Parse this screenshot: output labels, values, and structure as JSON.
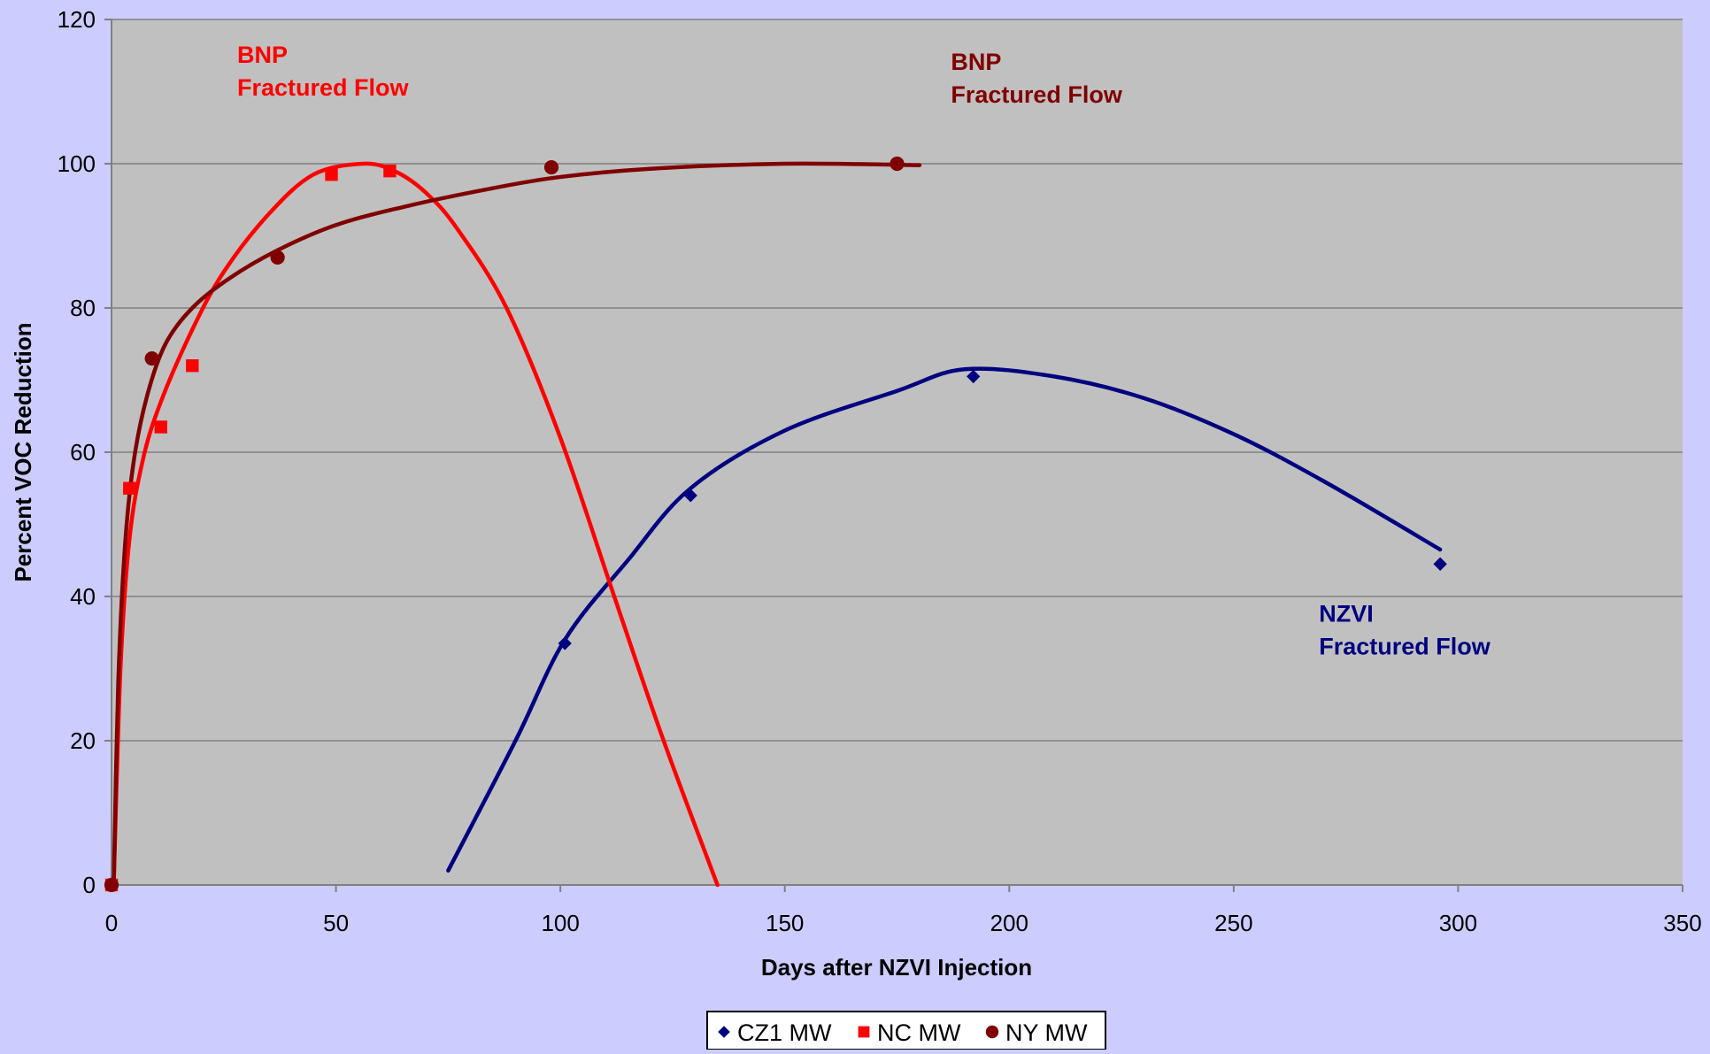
{
  "chart_data": {
    "type": "scatter",
    "title": "",
    "xlabel": "Days after NZVI Injection",
    "ylabel": "Percent VOC Reduction",
    "xlim": [
      0,
      350
    ],
    "ylim": [
      0,
      120
    ],
    "x_ticks": [
      0,
      50,
      100,
      150,
      200,
      250,
      300,
      350
    ],
    "y_ticks": [
      0,
      20,
      40,
      60,
      80,
      100,
      120
    ],
    "grid": "horizontal",
    "legend_position": "bottom",
    "colors": {
      "background": "#ccccff",
      "plot_area": "#c0c0c0",
      "gridline": "#808080",
      "text": "#000000"
    },
    "series": [
      {
        "name": "CZ1 MW",
        "marker": "diamond",
        "color": "#000080",
        "x": [
          101,
          129,
          192,
          296
        ],
        "y": [
          33.5,
          54,
          70.5,
          44.5
        ],
        "trend_curve": {
          "x": [
            75,
            90,
            101,
            115,
            129,
            150,
            175,
            190,
            210,
            230,
            250,
            270,
            296
          ],
          "y": [
            2,
            20,
            34,
            45,
            55,
            63,
            68.5,
            71.5,
            70.5,
            67.5,
            62.5,
            56,
            46.5
          ]
        }
      },
      {
        "name": "NC MW",
        "marker": "square",
        "color": "#ff0000",
        "x": [
          0,
          4,
          11,
          18,
          49,
          62
        ],
        "y": [
          0,
          55,
          63.5,
          72,
          98.5,
          99
        ],
        "trend_curve": {
          "x": [
            0.5,
            2,
            4,
            7,
            11,
            18,
            25,
            35,
            45,
            56,
            63,
            70,
            77,
            88,
            100,
            112,
            123,
            135
          ],
          "y": [
            0,
            30,
            48,
            59,
            67,
            77,
            85,
            93,
            98.5,
            100,
            99,
            96,
            91,
            80,
            62,
            40,
            20,
            0
          ]
        }
      },
      {
        "name": "NY MW",
        "marker": "circle",
        "color": "#800000",
        "x": [
          0,
          9,
          37,
          98,
          175
        ],
        "y": [
          0,
          73,
          87,
          99.5,
          100
        ],
        "trend_curve": {
          "x": [
            0.5,
            1.5,
            3,
            5,
            8,
            12,
            18,
            26,
            37,
            50,
            65,
            80,
            98,
            120,
            150,
            180
          ],
          "y": [
            0,
            28,
            47,
            59,
            68,
            75,
            80,
            84,
            88,
            91.5,
            94,
            96,
            98,
            99.3,
            100,
            99.8
          ]
        }
      }
    ],
    "annotations": [
      {
        "lines": [
          "BNP",
          "Fractured Flow"
        ],
        "color": "#ff0000",
        "x": 28,
        "y": 114
      },
      {
        "lines": [
          "BNP",
          "Fractured Flow"
        ],
        "color": "#800000",
        "x": 187,
        "y": 113
      },
      {
        "lines": [
          "NZVI",
          "Fractured Flow"
        ],
        "color": "#000080",
        "x": 269,
        "y": 36.5
      }
    ]
  }
}
